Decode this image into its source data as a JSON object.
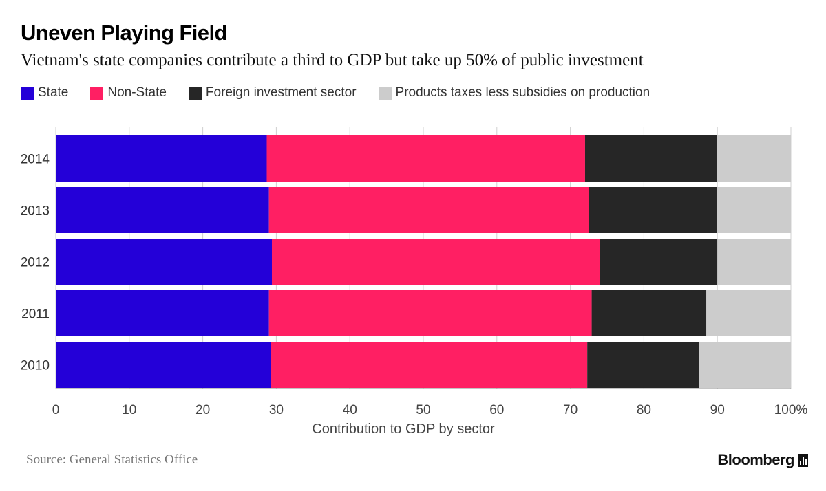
{
  "title": "Uneven Playing Field",
  "subtitle": "Vietnam's state companies contribute a third to GDP but take up 50% of public investment",
  "legend": [
    {
      "label": "State",
      "color": "#2400d8"
    },
    {
      "label": "Non-State",
      "color": "#ff1f63"
    },
    {
      "label": "Foreign investment sector",
      "color": "#262626"
    },
    {
      "label": "Products taxes less subsidies on production",
      "color": "#cccccc"
    }
  ],
  "source": "Source: General Statistics Office",
  "brand": "Bloomberg",
  "chart_data": {
    "type": "bar",
    "orientation": "horizontal",
    "stacked": true,
    "categories": [
      "2014",
      "2013",
      "2012",
      "2011",
      "2010"
    ],
    "series": [
      {
        "name": "State",
        "color": "#2400d8",
        "values": [
          28.7,
          29.0,
          29.4,
          29.0,
          29.3
        ]
      },
      {
        "name": "Non-State",
        "color": "#ff1f63",
        "values": [
          43.3,
          43.5,
          44.6,
          43.9,
          43.0
        ]
      },
      {
        "name": "Foreign investment sector",
        "color": "#262626",
        "values": [
          17.9,
          17.4,
          16.0,
          15.6,
          15.2
        ]
      },
      {
        "name": "Products taxes less subsidies on production",
        "color": "#cccccc",
        "values": [
          10.1,
          10.1,
          10.0,
          11.5,
          12.5
        ]
      }
    ],
    "xlabel": "Contribution to GDP by sector",
    "xlim": [
      0,
      100
    ],
    "xticks": [
      "0",
      "10",
      "20",
      "30",
      "40",
      "50",
      "60",
      "70",
      "80",
      "90",
      "100%"
    ],
    "grid": true,
    "legend_position": "top-left"
  }
}
